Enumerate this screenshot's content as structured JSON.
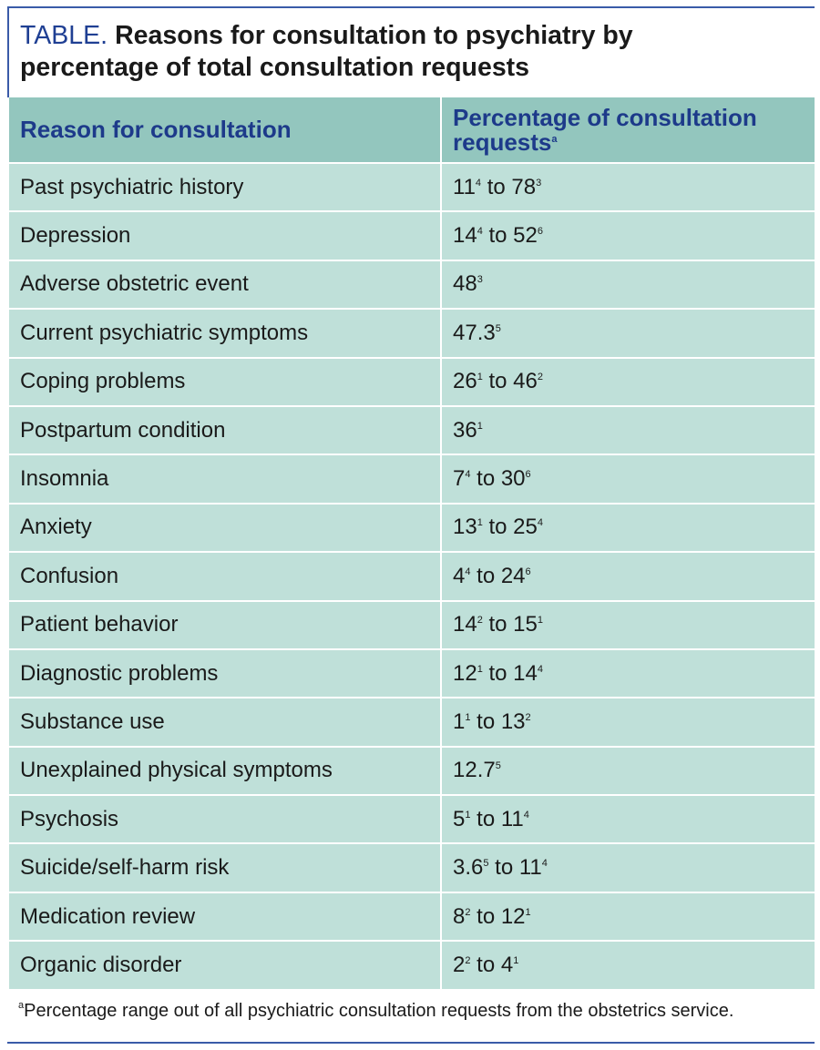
{
  "title": {
    "label": "TABLE.",
    "text": "Reasons for consultation to psychiatry by percentage of total consultation requests"
  },
  "table": {
    "header": [
      [
        "Reason for consultation"
      ],
      [
        "Percentage of consultation requests",
        "a"
      ]
    ],
    "rows": [
      [
        [
          "Past psychiatric history"
        ],
        [
          "11",
          "4",
          " to 78",
          "3"
        ]
      ],
      [
        [
          "Depression"
        ],
        [
          "14",
          "4",
          " to 52",
          "6"
        ]
      ],
      [
        [
          "Adverse obstetric event"
        ],
        [
          "48",
          "3"
        ]
      ],
      [
        [
          "Current psychiatric symptoms"
        ],
        [
          "47.3",
          "5"
        ]
      ],
      [
        [
          "Coping problems"
        ],
        [
          "26",
          "1",
          " to 46",
          "2"
        ]
      ],
      [
        [
          "Postpartum condition"
        ],
        [
          "36",
          "1"
        ]
      ],
      [
        [
          "Insomnia"
        ],
        [
          "7",
          "4",
          " to 30",
          "6"
        ]
      ],
      [
        [
          "Anxiety"
        ],
        [
          "13",
          "1",
          " to 25",
          "4"
        ]
      ],
      [
        [
          "Confusion"
        ],
        [
          "4",
          "4",
          " to 24",
          "6"
        ]
      ],
      [
        [
          "Patient behavior"
        ],
        [
          "14",
          "2",
          " to 15",
          "1"
        ]
      ],
      [
        [
          "Diagnostic problems"
        ],
        [
          "12",
          "1",
          " to 14",
          "4"
        ]
      ],
      [
        [
          "Substance use"
        ],
        [
          "1",
          "1",
          " to 13",
          "2"
        ]
      ],
      [
        [
          "Unexplained physical symptoms"
        ],
        [
          "12.7",
          "5"
        ]
      ],
      [
        [
          "Psychosis"
        ],
        [
          "5",
          "1",
          " to 11",
          "4"
        ]
      ],
      [
        [
          "Suicide/self-harm risk"
        ],
        [
          "3.6",
          "5",
          " to 11",
          "4"
        ]
      ],
      [
        [
          "Medication review"
        ],
        [
          "8",
          "2",
          " to 12",
          "1"
        ]
      ],
      [
        [
          "Organic disorder"
        ],
        [
          "2",
          "2",
          " to 4",
          "1"
        ]
      ]
    ]
  },
  "footnote": [
    "",
    "a",
    "Percentage range out of all psychiatric consultation requests from the obstetrics service."
  ]
}
